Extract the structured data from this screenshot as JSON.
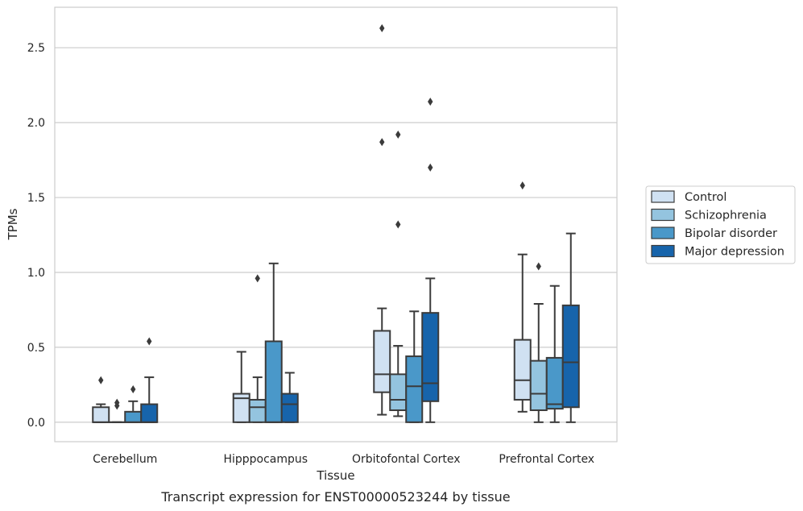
{
  "caption": "Transcript expression for ENST00000523244 by tissue",
  "chart_data": {
    "type": "box",
    "xlabel": "Tissue",
    "ylabel": "TPMs",
    "ylim": [
      -0.13,
      2.77
    ],
    "yticks": [
      0.0,
      0.5,
      1.0,
      1.5,
      2.0,
      2.5
    ],
    "ytick_labels": [
      "0.0",
      "0.5",
      "1.0",
      "1.5",
      "2.0",
      "2.5"
    ],
    "grid": "horizontal",
    "legend_placement": "right",
    "categories": [
      "Cerebellum",
      "Hipppocampus",
      "Orbitofontal Cortex",
      "Prefrontal Cortex"
    ],
    "series": [
      {
        "name": "Control",
        "color": "#d0e1f2",
        "boxes": [
          {
            "whislo": 0.0,
            "q1": 0.0,
            "med": 0.0,
            "q3": 0.1,
            "whishi": 0.12,
            "fliers": [
              0.28
            ]
          },
          {
            "whislo": 0.0,
            "q1": 0.0,
            "med": 0.16,
            "q3": 0.19,
            "whishi": 0.47,
            "fliers": []
          },
          {
            "whislo": 0.05,
            "q1": 0.2,
            "med": 0.32,
            "q3": 0.61,
            "whishi": 0.76,
            "fliers": [
              1.87,
              2.63
            ]
          },
          {
            "whislo": 0.07,
            "q1": 0.15,
            "med": 0.28,
            "q3": 0.55,
            "whishi": 1.12,
            "fliers": [
              1.58
            ]
          }
        ]
      },
      {
        "name": "Schizophrenia",
        "color": "#94c4df",
        "boxes": [
          {
            "whislo": 0.0,
            "q1": 0.0,
            "med": 0.0,
            "q3": 0.0,
            "whishi": 0.0,
            "fliers": [
              0.11,
              0.13
            ]
          },
          {
            "whislo": 0.0,
            "q1": 0.0,
            "med": 0.1,
            "q3": 0.15,
            "whishi": 0.3,
            "fliers": [
              0.96
            ]
          },
          {
            "whislo": 0.04,
            "q1": 0.08,
            "med": 0.15,
            "q3": 0.32,
            "whishi": 0.51,
            "fliers": [
              1.32,
              1.92
            ]
          },
          {
            "whislo": 0.0,
            "q1": 0.08,
            "med": 0.19,
            "q3": 0.41,
            "whishi": 0.79,
            "fliers": [
              1.04
            ]
          }
        ]
      },
      {
        "name": "Bipolar disorder",
        "color": "#4a98c9",
        "boxes": [
          {
            "whislo": 0.0,
            "q1": 0.0,
            "med": 0.0,
            "q3": 0.07,
            "whishi": 0.14,
            "fliers": [
              0.22
            ]
          },
          {
            "whislo": 0.0,
            "q1": 0.0,
            "med": 0.0,
            "q3": 0.54,
            "whishi": 1.06,
            "fliers": []
          },
          {
            "whislo": 0.0,
            "q1": 0.0,
            "med": 0.24,
            "q3": 0.44,
            "whishi": 0.74,
            "fliers": []
          },
          {
            "whislo": 0.0,
            "q1": 0.09,
            "med": 0.12,
            "q3": 0.43,
            "whishi": 0.91,
            "fliers": []
          }
        ]
      },
      {
        "name": "Major depression",
        "color": "#1764ab",
        "boxes": [
          {
            "whislo": 0.0,
            "q1": 0.0,
            "med": 0.0,
            "q3": 0.12,
            "whishi": 0.3,
            "fliers": [
              0.54
            ]
          },
          {
            "whislo": 0.0,
            "q1": 0.0,
            "med": 0.12,
            "q3": 0.19,
            "whishi": 0.33,
            "fliers": []
          },
          {
            "whislo": 0.0,
            "q1": 0.14,
            "med": 0.26,
            "q3": 0.73,
            "whishi": 0.96,
            "fliers": [
              1.7,
              2.14
            ]
          },
          {
            "whislo": 0.0,
            "q1": 0.1,
            "med": 0.4,
            "q3": 0.78,
            "whishi": 1.26,
            "fliers": []
          }
        ]
      }
    ]
  }
}
